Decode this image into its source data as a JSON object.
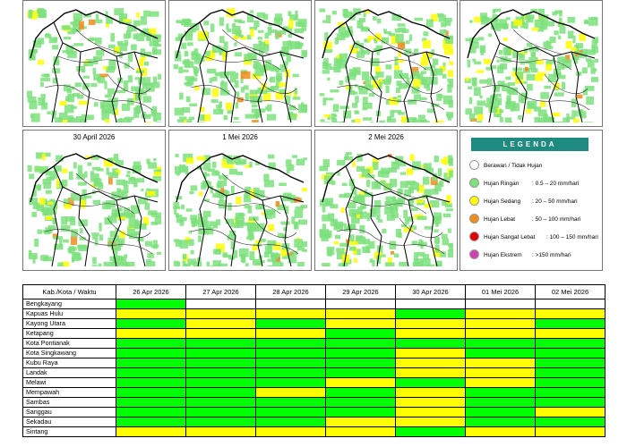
{
  "panels_row1": [
    {
      "title": ""
    },
    {
      "title": ""
    },
    {
      "title": ""
    },
    {
      "title": ""
    }
  ],
  "panels_row2": [
    {
      "title": "30 April 2026"
    },
    {
      "title": "1 Mei 2026"
    },
    {
      "title": "2 Mei 2026"
    }
  ],
  "legend": {
    "title": "LEGENDA",
    "items": [
      {
        "name": "Berawan / Tidak Hujan",
        "range": "",
        "color": "#ffffff"
      },
      {
        "name": "Hujan Ringan",
        "range": ": 0.5 – 20 mm/hari",
        "color": "#7de07d"
      },
      {
        "name": "Hujan Sedang",
        "range": ": 20 – 50 mm/hari",
        "color": "#ffff00"
      },
      {
        "name": "Hujan Lebat",
        "range": ": 50 – 100 mm/hari",
        "color": "#f08c1e"
      },
      {
        "name": "Hujan Sangat Lebat",
        "range": ": 100 – 150 mm/hari",
        "color": "#e00000"
      },
      {
        "name": "Hujan Ekstrem",
        "range": ": >150 mm/hari",
        "color": "#d040b0"
      }
    ]
  },
  "table": {
    "header": [
      "Kab./Kota / Waktu",
      "26 Apr 2026",
      "27 Apr 2026",
      "28 Apr 2026",
      "29 Apr 2026",
      "30 Apr 2026",
      "01 Mei 2026",
      "02 Mei 2026"
    ],
    "rows": [
      {
        "name": "Bengkayang",
        "cells": [
          "g",
          "w",
          "w",
          "w",
          "w",
          "w",
          "w"
        ]
      },
      {
        "name": "Kapuas Hulu",
        "cells": [
          "y",
          "y",
          "y",
          "y",
          "g",
          "y",
          "y"
        ]
      },
      {
        "name": "Kayong Utara",
        "cells": [
          "g",
          "y",
          "g",
          "y",
          "y",
          "y",
          "g"
        ]
      },
      {
        "name": "Ketapang",
        "cells": [
          "y",
          "y",
          "y",
          "g",
          "y",
          "y",
          "y"
        ]
      },
      {
        "name": "Kota Pontianak",
        "cells": [
          "g",
          "g",
          "g",
          "g",
          "g",
          "g",
          "g"
        ]
      },
      {
        "name": "Kota Singkawang",
        "cells": [
          "g",
          "g",
          "g",
          "g",
          "y",
          "g",
          "g"
        ]
      },
      {
        "name": "Kubu Raya",
        "cells": [
          "g",
          "g",
          "g",
          "g",
          "y",
          "y",
          "g"
        ]
      },
      {
        "name": "Landak",
        "cells": [
          "g",
          "g",
          "g",
          "g",
          "y",
          "y",
          "g"
        ]
      },
      {
        "name": "Melawi",
        "cells": [
          "g",
          "g",
          "g",
          "y",
          "g",
          "y",
          "g"
        ]
      },
      {
        "name": "Mempawah",
        "cells": [
          "g",
          "g",
          "y",
          "g",
          "y",
          "g",
          "g"
        ]
      },
      {
        "name": "Sambas",
        "cells": [
          "g",
          "g",
          "g",
          "g",
          "y",
          "g",
          "g"
        ]
      },
      {
        "name": "Sanggau",
        "cells": [
          "g",
          "g",
          "g",
          "g",
          "y",
          "g",
          "y"
        ]
      },
      {
        "name": "Sekadau",
        "cells": [
          "g",
          "g",
          "g",
          "y",
          "y",
          "g",
          "g"
        ]
      },
      {
        "name": "Sintang",
        "cells": [
          "y",
          "y",
          "y",
          "y",
          "g",
          "y",
          "y"
        ]
      }
    ]
  }
}
